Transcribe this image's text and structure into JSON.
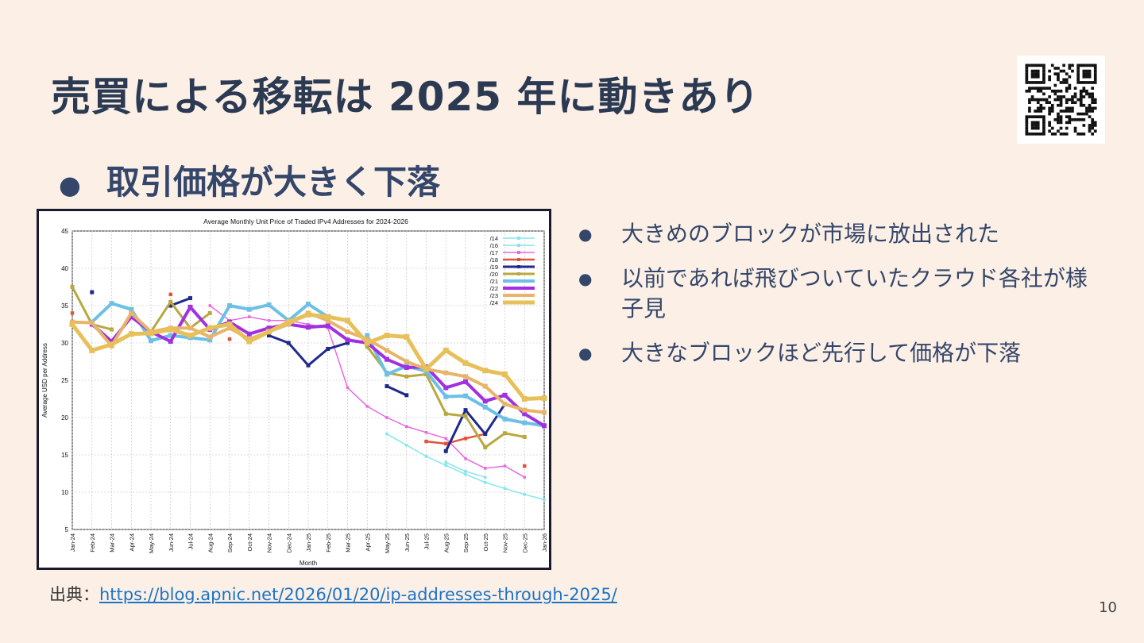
{
  "slide": {
    "title": "売買による移転は 2025 年に動きあり",
    "subheading": "取引価格が大きく下落",
    "bullets": [
      "大きめのブロックが市場に放出された",
      "以前であれば飛びついていたクラウド各社が様子見",
      "大きなブロックほど先行して価格が下落"
    ],
    "source_label": "出典：",
    "source_link": "https://blog.apnic.net/2026/01/20/ip-addresses-through-2025/",
    "page_number": "10"
  },
  "chart_data": {
    "type": "line",
    "title": "Average Monthly Unit Price of Traded IPv4 Addresses for 2024-2026",
    "xlabel": "Month",
    "ylabel": "Average USD per Address",
    "ylim": [
      5,
      45
    ],
    "yticks": [
      5,
      10,
      15,
      20,
      25,
      30,
      35,
      40,
      45
    ],
    "grid": true,
    "legend_position": "top-right",
    "categories": [
      "Jan-24",
      "Feb-24",
      "Mar-24",
      "Apr-24",
      "May-24",
      "Jun-24",
      "Jul-24",
      "Aug-24",
      "Sep-24",
      "Oct-24",
      "Nov-24",
      "Dec-24",
      "Jan-25",
      "Feb-25",
      "Mar-25",
      "Apr-25",
      "May-25",
      "Jun-25",
      "Jul-25",
      "Aug-25",
      "Sep-25",
      "Oct-25",
      "Nov-25",
      "Dec-25",
      "Jan-26"
    ],
    "series": [
      {
        "name": "/14",
        "color": "#7fe8ee",
        "width": 1.5,
        "values": [
          null,
          null,
          null,
          null,
          null,
          null,
          null,
          null,
          null,
          null,
          null,
          null,
          null,
          null,
          null,
          null,
          17.8,
          16.3,
          14.8,
          13.6,
          12.4,
          11.3,
          10.5,
          9.7,
          9.0
        ]
      },
      {
        "name": "/16",
        "color": "#8ee0e6",
        "width": 1.5,
        "values": [
          null,
          null,
          null,
          null,
          null,
          null,
          null,
          null,
          null,
          null,
          null,
          null,
          null,
          null,
          null,
          null,
          null,
          null,
          null,
          14.0,
          12.8,
          12.0,
          null,
          null,
          null
        ]
      },
      {
        "name": "/17",
        "color": "#e868e0",
        "width": 1.5,
        "values": [
          null,
          null,
          null,
          null,
          null,
          null,
          null,
          35.0,
          33.0,
          33.5,
          33.0,
          33.0,
          32.5,
          32.0,
          24.0,
          21.5,
          20.0,
          18.8,
          18.0,
          17.2,
          14.5,
          13.2,
          13.5,
          12.0,
          null
        ]
      },
      {
        "name": "/18",
        "color": "#e2543a",
        "width": 2.5,
        "values": [
          34.0,
          null,
          null,
          null,
          null,
          36.5,
          null,
          null,
          30.5,
          null,
          null,
          null,
          null,
          null,
          null,
          null,
          null,
          null,
          16.8,
          16.5,
          17.2,
          17.8,
          null,
          13.5,
          null
        ]
      },
      {
        "name": "/19",
        "color": "#1e2a8a",
        "width": 3,
        "values": [
          null,
          36.8,
          null,
          34.0,
          null,
          35.0,
          36.0,
          null,
          null,
          null,
          31.0,
          30.0,
          27.0,
          29.2,
          30.0,
          null,
          24.2,
          23.0,
          null,
          15.5,
          21.0,
          17.8,
          21.8,
          null,
          null
        ]
      },
      {
        "name": "/20",
        "color": "#b8a840",
        "width": 3,
        "values": [
          37.5,
          32.5,
          31.8,
          null,
          31.5,
          35.5,
          32.0,
          34.0,
          null,
          null,
          null,
          null,
          null,
          null,
          null,
          29.5,
          26.0,
          25.5,
          25.8,
          20.5,
          20.2,
          16.0,
          17.9,
          17.4,
          null
        ]
      },
      {
        "name": "/21",
        "color": "#6cc0e6",
        "width": 4,
        "values": [
          null,
          32.8,
          35.3,
          34.5,
          30.3,
          31.0,
          30.7,
          30.4,
          35.0,
          34.5,
          35.1,
          33.0,
          35.2,
          33.5,
          null,
          31.0,
          25.8,
          26.9,
          26.2,
          22.8,
          22.9,
          21.4,
          19.8,
          19.3,
          18.9
        ]
      },
      {
        "name": "/22",
        "color": "#a030e0",
        "width": 4,
        "values": [
          null,
          32.5,
          30.2,
          33.5,
          31.5,
          30.2,
          34.8,
          31.8,
          32.8,
          31.2,
          32.0,
          32.5,
          32.1,
          32.3,
          30.4,
          30.0,
          27.8,
          26.7,
          26.8,
          24.0,
          24.8,
          22.2,
          23.0,
          20.5,
          18.9
        ]
      },
      {
        "name": "/23",
        "color": "#e8b46a",
        "width": 4,
        "values": [
          32.8,
          32.7,
          29.6,
          34.0,
          31.5,
          32.0,
          32.0,
          30.8,
          32.0,
          30.5,
          31.5,
          32.5,
          34.0,
          33.0,
          31.5,
          30.5,
          29.0,
          27.5,
          26.5,
          26.0,
          25.5,
          24.2,
          21.8,
          21.0,
          20.7
        ]
      },
      {
        "name": "/24",
        "color": "#e8c05a",
        "width": 5,
        "values": [
          32.5,
          29.0,
          29.8,
          31.2,
          31.3,
          31.8,
          31.0,
          32.0,
          32.5,
          30.2,
          31.5,
          32.8,
          33.8,
          33.5,
          33.0,
          30.0,
          31.0,
          30.8,
          26.5,
          29.0,
          27.3,
          26.3,
          25.8,
          22.5,
          22.6
        ]
      }
    ]
  }
}
